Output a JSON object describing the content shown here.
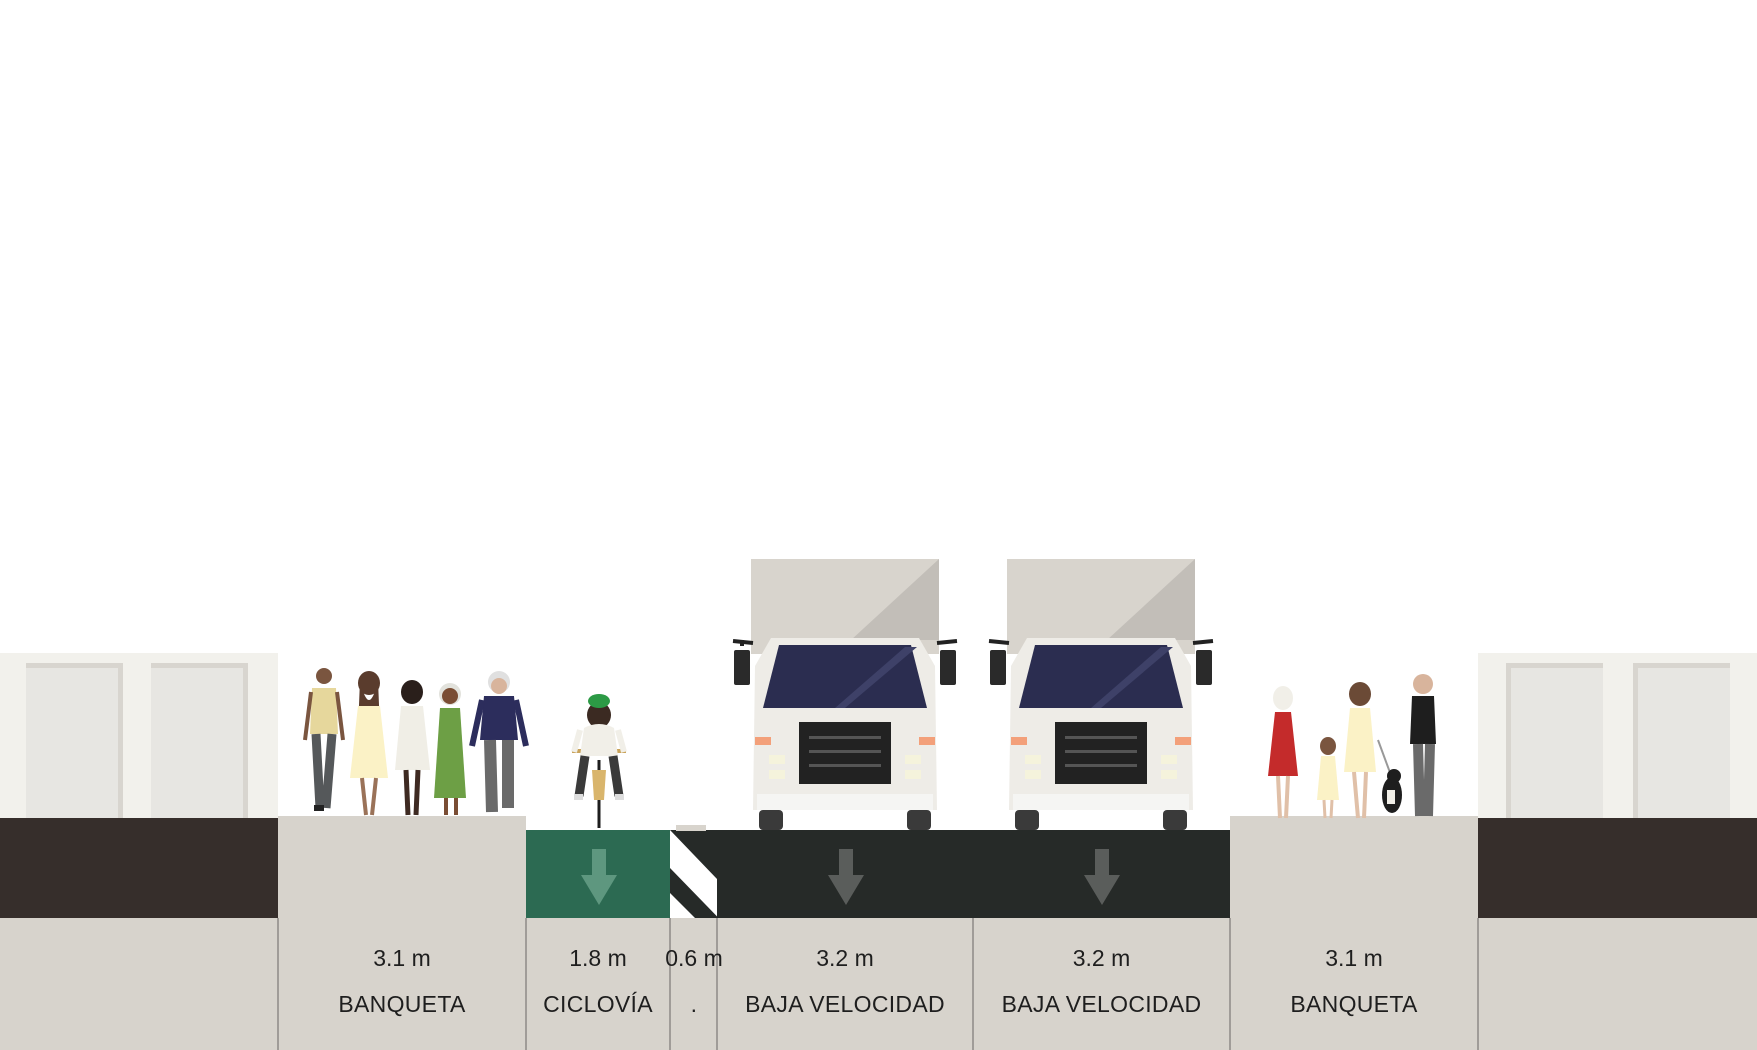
{
  "street": {
    "segments": [
      {
        "type": "sidewalk",
        "width_label": "3.1 m",
        "name": "BANQUETA",
        "color": "#d7d3cc"
      },
      {
        "type": "bike-lane",
        "width_label": "1.8 m",
        "name": "CICLOVÍA",
        "color": "#2c6a52"
      },
      {
        "type": "buffer",
        "width_label": "0.6 m",
        "name": ".",
        "color": "#262a28"
      },
      {
        "type": "drive-lane",
        "width_label": "3.2 m",
        "name": "BAJA VELOCIDAD",
        "color": "#262a28"
      },
      {
        "type": "drive-lane",
        "width_label": "3.2 m",
        "name": "BAJA VELOCIDAD",
        "color": "#262a28"
      },
      {
        "type": "sidewalk",
        "width_label": "3.1 m",
        "name": "BANQUETA",
        "color": "#d7d3cc"
      }
    ],
    "colors": {
      "building": "#f2f1ec",
      "building_door": "#e7e6e2",
      "curb_dark": "#362e2b",
      "info_band": "#d7d3cc",
      "divider": "#8e8a86",
      "truck_body": "#d8d4cd",
      "truck_windshield": "#2b2d50"
    },
    "icons": [
      "pedestrian-group-icon",
      "cyclist-icon",
      "truck-icon",
      "truck-icon",
      "pedestrian-with-dog-icon",
      "lane-direction-arrow-icon",
      "buffer-hatch-icon"
    ]
  }
}
